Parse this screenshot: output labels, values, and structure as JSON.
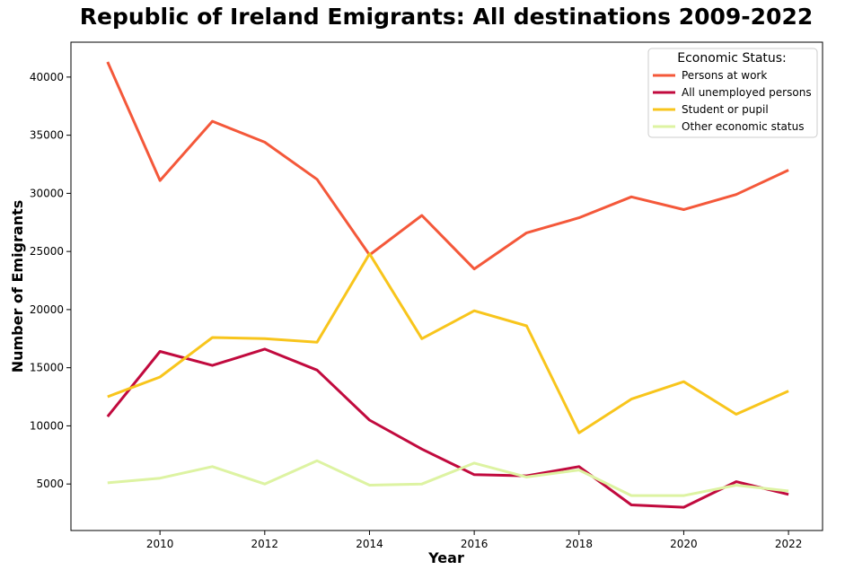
{
  "chart_data": {
    "type": "line",
    "title": "Republic of Ireland Emigrants: All destinations 2009-2022",
    "xlabel": "Year",
    "ylabel": "Number of Emigrants",
    "x": [
      2009,
      2010,
      2011,
      2012,
      2013,
      2014,
      2015,
      2016,
      2017,
      2018,
      2019,
      2020,
      2021,
      2022
    ],
    "xlim": [
      2008.3,
      2022.65
    ],
    "ylim": [
      1000,
      43000
    ],
    "xticks": [
      2010,
      2012,
      2014,
      2016,
      2018,
      2020,
      2022
    ],
    "yticks": [
      5000,
      10000,
      15000,
      20000,
      25000,
      30000,
      35000,
      40000
    ],
    "grid": false,
    "legend": {
      "title": "Economic Status:",
      "placement": "top-right"
    },
    "series": [
      {
        "name": "Persons at work",
        "color": "#f4583a",
        "values": [
          41300,
          31100,
          36200,
          34400,
          31200,
          24700,
          28100,
          23500,
          26600,
          27900,
          29700,
          28600,
          29900,
          32000
        ]
      },
      {
        "name": "All unemployed persons",
        "color": "#c10a3e",
        "values": [
          10800,
          16400,
          15200,
          16600,
          14800,
          10500,
          8000,
          5800,
          5700,
          6500,
          3200,
          3000,
          5200,
          4100
        ]
      },
      {
        "name": "Student or pupil",
        "color": "#f8c51c",
        "values": [
          12500,
          14200,
          17600,
          17500,
          17200,
          24800,
          17500,
          19900,
          18600,
          9400,
          12300,
          13800,
          11000,
          13000
        ]
      },
      {
        "name": "Other economic status",
        "color": "#ddf3a2",
        "values": [
          5100,
          5500,
          6500,
          5000,
          7000,
          4900,
          5000,
          6800,
          5600,
          6200,
          4000,
          4000,
          4900,
          4400
        ]
      }
    ]
  }
}
